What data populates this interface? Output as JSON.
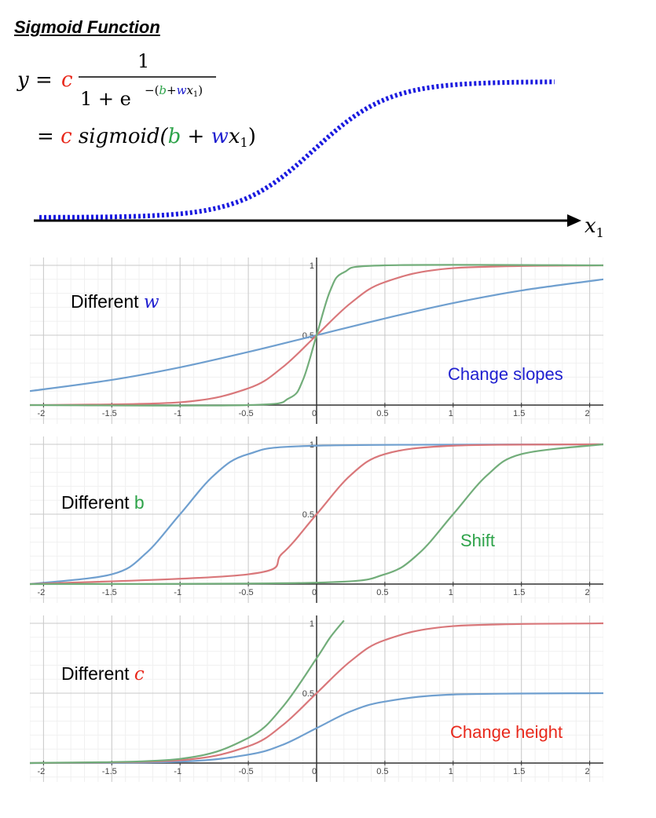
{
  "title": "Sigmoid Function",
  "formula": {
    "line1_y_eq": "y = ",
    "c": "c",
    "num": "1",
    "den_prefix": "1 + e",
    "exp_open": "−(",
    "b": "b",
    "plus": "+",
    "w": "w",
    "x": "x",
    "sub1": "1",
    "exp_close": ")",
    "line2_eq": "= ",
    "sigmoid": " sigmoid(",
    "plus2": " + ",
    "close": ")",
    "axis_label": "x",
    "axis_sub": "1"
  },
  "colors": {
    "c": "#e8291c",
    "b": "#2ea34a",
    "w": "#2020d0",
    "dotted": "#1a1adf",
    "blue_curve": "#6f9fcf",
    "red_curve": "#d9777a",
    "green_curve": "#72ad7a"
  },
  "panels": [
    {
      "label_prefix": "Different ",
      "label_var": "w",
      "var_color": "#2020d0",
      "var_italic": true,
      "annotation": "Change slopes",
      "annotation_color": "#2020d0"
    },
    {
      "label_prefix": "Different ",
      "label_var": "b",
      "var_color": "#2ea34a",
      "var_italic": false,
      "annotation": "Shift",
      "annotation_color": "#2ea34a"
    },
    {
      "label_prefix": "Different ",
      "label_var": "c",
      "var_color": "#e8291c",
      "var_italic": true,
      "annotation": "Change height",
      "annotation_color": "#e8291c"
    }
  ],
  "chart_data": [
    {
      "type": "line",
      "xlim": [
        -2.1,
        2.1
      ],
      "ylim": [
        0,
        1
      ],
      "x_ticks": [
        "-2",
        "-1.5",
        "-1",
        "-0.5",
        "0",
        "0.5",
        "1",
        "1.5",
        "2"
      ],
      "y_ticks": [
        "0.5",
        "1"
      ],
      "grid": true,
      "series": [
        {
          "color": "#6f9fcf",
          "x": [
            -2.1,
            -1.5,
            -1,
            -0.5,
            0,
            0.5,
            1,
            1.5,
            2.1
          ],
          "y": [
            0.1,
            0.18,
            0.27,
            0.38,
            0.5,
            0.62,
            0.73,
            0.82,
            0.9
          ]
        },
        {
          "color": "#d9777a",
          "x": [
            -2.1,
            -1,
            -0.5,
            -0.25,
            0,
            0.25,
            0.5,
            1,
            2.1
          ],
          "y": [
            0.0,
            0.02,
            0.12,
            0.27,
            0.5,
            0.73,
            0.88,
            0.98,
            1.0
          ]
        },
        {
          "color": "#72ad7a",
          "x": [
            -2.1,
            -0.5,
            -0.2,
            -0.1,
            0,
            0.1,
            0.2,
            0.5,
            2.1
          ],
          "y": [
            0.0,
            0.0,
            0.05,
            0.18,
            0.5,
            0.82,
            0.95,
            1.0,
            1.0
          ]
        }
      ]
    },
    {
      "type": "line",
      "xlim": [
        -2.1,
        2.1
      ],
      "ylim": [
        0,
        1
      ],
      "x_ticks": [
        "-2",
        "-1.5",
        "-1",
        "-0.5",
        "0",
        "0.5",
        "1",
        "1.5",
        "2"
      ],
      "y_ticks": [
        "0.5",
        "1"
      ],
      "grid": true,
      "series": [
        {
          "color": "#6f9fcf",
          "x": [
            -2.1,
            -1.5,
            -1.25,
            -1,
            -0.75,
            -0.5,
            0,
            2.1
          ],
          "y": [
            0.0,
            0.07,
            0.22,
            0.5,
            0.78,
            0.93,
            0.99,
            1.0
          ]
        },
        {
          "color": "#d9777a",
          "x": [
            -2.1,
            -0.5,
            -0.25,
            0,
            0.25,
            0.5,
            1,
            2.1
          ],
          "y": [
            0.0,
            0.07,
            0.22,
            0.5,
            0.78,
            0.93,
            0.99,
            1.0
          ]
        },
        {
          "color": "#72ad7a",
          "x": [
            -2.1,
            0,
            0.5,
            0.75,
            1,
            1.25,
            1.5,
            2.1
          ],
          "y": [
            0.0,
            0.01,
            0.07,
            0.22,
            0.5,
            0.78,
            0.93,
            1.0
          ]
        }
      ]
    },
    {
      "type": "line",
      "xlim": [
        -2.1,
        2.1
      ],
      "ylim": [
        0,
        1
      ],
      "x_ticks": [
        "-2",
        "-1.5",
        "-1",
        "-0.5",
        "0",
        "0.5",
        "1",
        "1.5",
        "2"
      ],
      "y_ticks": [
        "0.5",
        "1"
      ],
      "grid": true,
      "series": [
        {
          "color": "#6f9fcf",
          "x": [
            -2.1,
            -1,
            -0.5,
            -0.25,
            0,
            0.25,
            0.5,
            1,
            2.1
          ],
          "y": [
            0.0,
            0.01,
            0.06,
            0.13,
            0.25,
            0.37,
            0.44,
            0.49,
            0.5
          ]
        },
        {
          "color": "#d9777a",
          "x": [
            -2.1,
            -1,
            -0.5,
            -0.25,
            0,
            0.25,
            0.5,
            1,
            2.1
          ],
          "y": [
            0.0,
            0.02,
            0.12,
            0.27,
            0.5,
            0.73,
            0.88,
            0.98,
            1.0
          ]
        },
        {
          "color": "#72ad7a",
          "x": [
            -2.1,
            -1,
            -0.5,
            -0.25,
            0,
            0.1,
            0.2
          ],
          "y": [
            0.0,
            0.03,
            0.18,
            0.4,
            0.75,
            0.9,
            1.02
          ]
        }
      ]
    }
  ]
}
